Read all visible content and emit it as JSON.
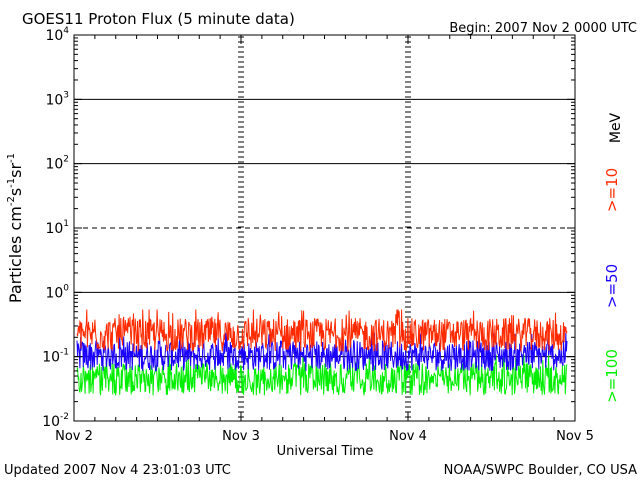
{
  "header": {
    "title": "GOES11 Proton Flux (5 minute data)",
    "begin": "Begin: 2007 Nov 2 0000 UTC"
  },
  "footer": {
    "updated": "Updated 2007 Nov  4 23:01:03 UTC",
    "credit": "NOAA/SWPC Boulder, CO USA"
  },
  "colors": {
    "ge10": "#ff2a00",
    "ge50": "#1a00ff",
    "ge100": "#00ee00",
    "frame": "#000000"
  },
  "chart_data": {
    "type": "line",
    "title": "GOES11 Proton Flux (5 minute data)",
    "xlabel": "Universal Time",
    "ylabel": {
      "text": "Particles cm",
      "sup1": "-2",
      "mid1": "s",
      "sup2": "-1",
      "mid2": "sr",
      "sup3": "-1"
    },
    "yscale": "log",
    "ylim": [
      0.01,
      10000
    ],
    "yticks": [
      {
        "value": 10000,
        "base": "10",
        "exp": "4"
      },
      {
        "value": 1000,
        "base": "10",
        "exp": "3"
      },
      {
        "value": 100,
        "base": "10",
        "exp": "2"
      },
      {
        "value": 10,
        "base": "10",
        "exp": "1"
      },
      {
        "value": 1,
        "base": "10",
        "exp": "0"
      },
      {
        "value": 0.1,
        "base": "10",
        "exp": "-1"
      },
      {
        "value": 0.01,
        "base": "10",
        "exp": "-2"
      }
    ],
    "reference_lines": [
      {
        "value": 1000,
        "style": "solid"
      },
      {
        "value": 100,
        "style": "solid"
      },
      {
        "value": 10,
        "style": "dashed"
      },
      {
        "value": 1,
        "style": "solid"
      },
      {
        "value": 0.1,
        "style": "solid"
      }
    ],
    "xlim": [
      "2007-11-02",
      "2007-11-05"
    ],
    "xticks": [
      "Nov 2",
      "Nov 3",
      "Nov 4",
      "Nov 5"
    ],
    "legend_placement": "right, vertical",
    "unit_label": "MeV",
    "series": [
      {
        "name": ">=10",
        "color": "#ff2a00",
        "typical_range": [
          0.12,
          0.4
        ]
      },
      {
        "name": ">=50",
        "color": "#1a00ff",
        "typical_range": [
          0.06,
          0.18
        ]
      },
      {
        "name": ">=100",
        "color": "#00ee00",
        "typical_range": [
          0.025,
          0.08
        ]
      }
    ]
  }
}
